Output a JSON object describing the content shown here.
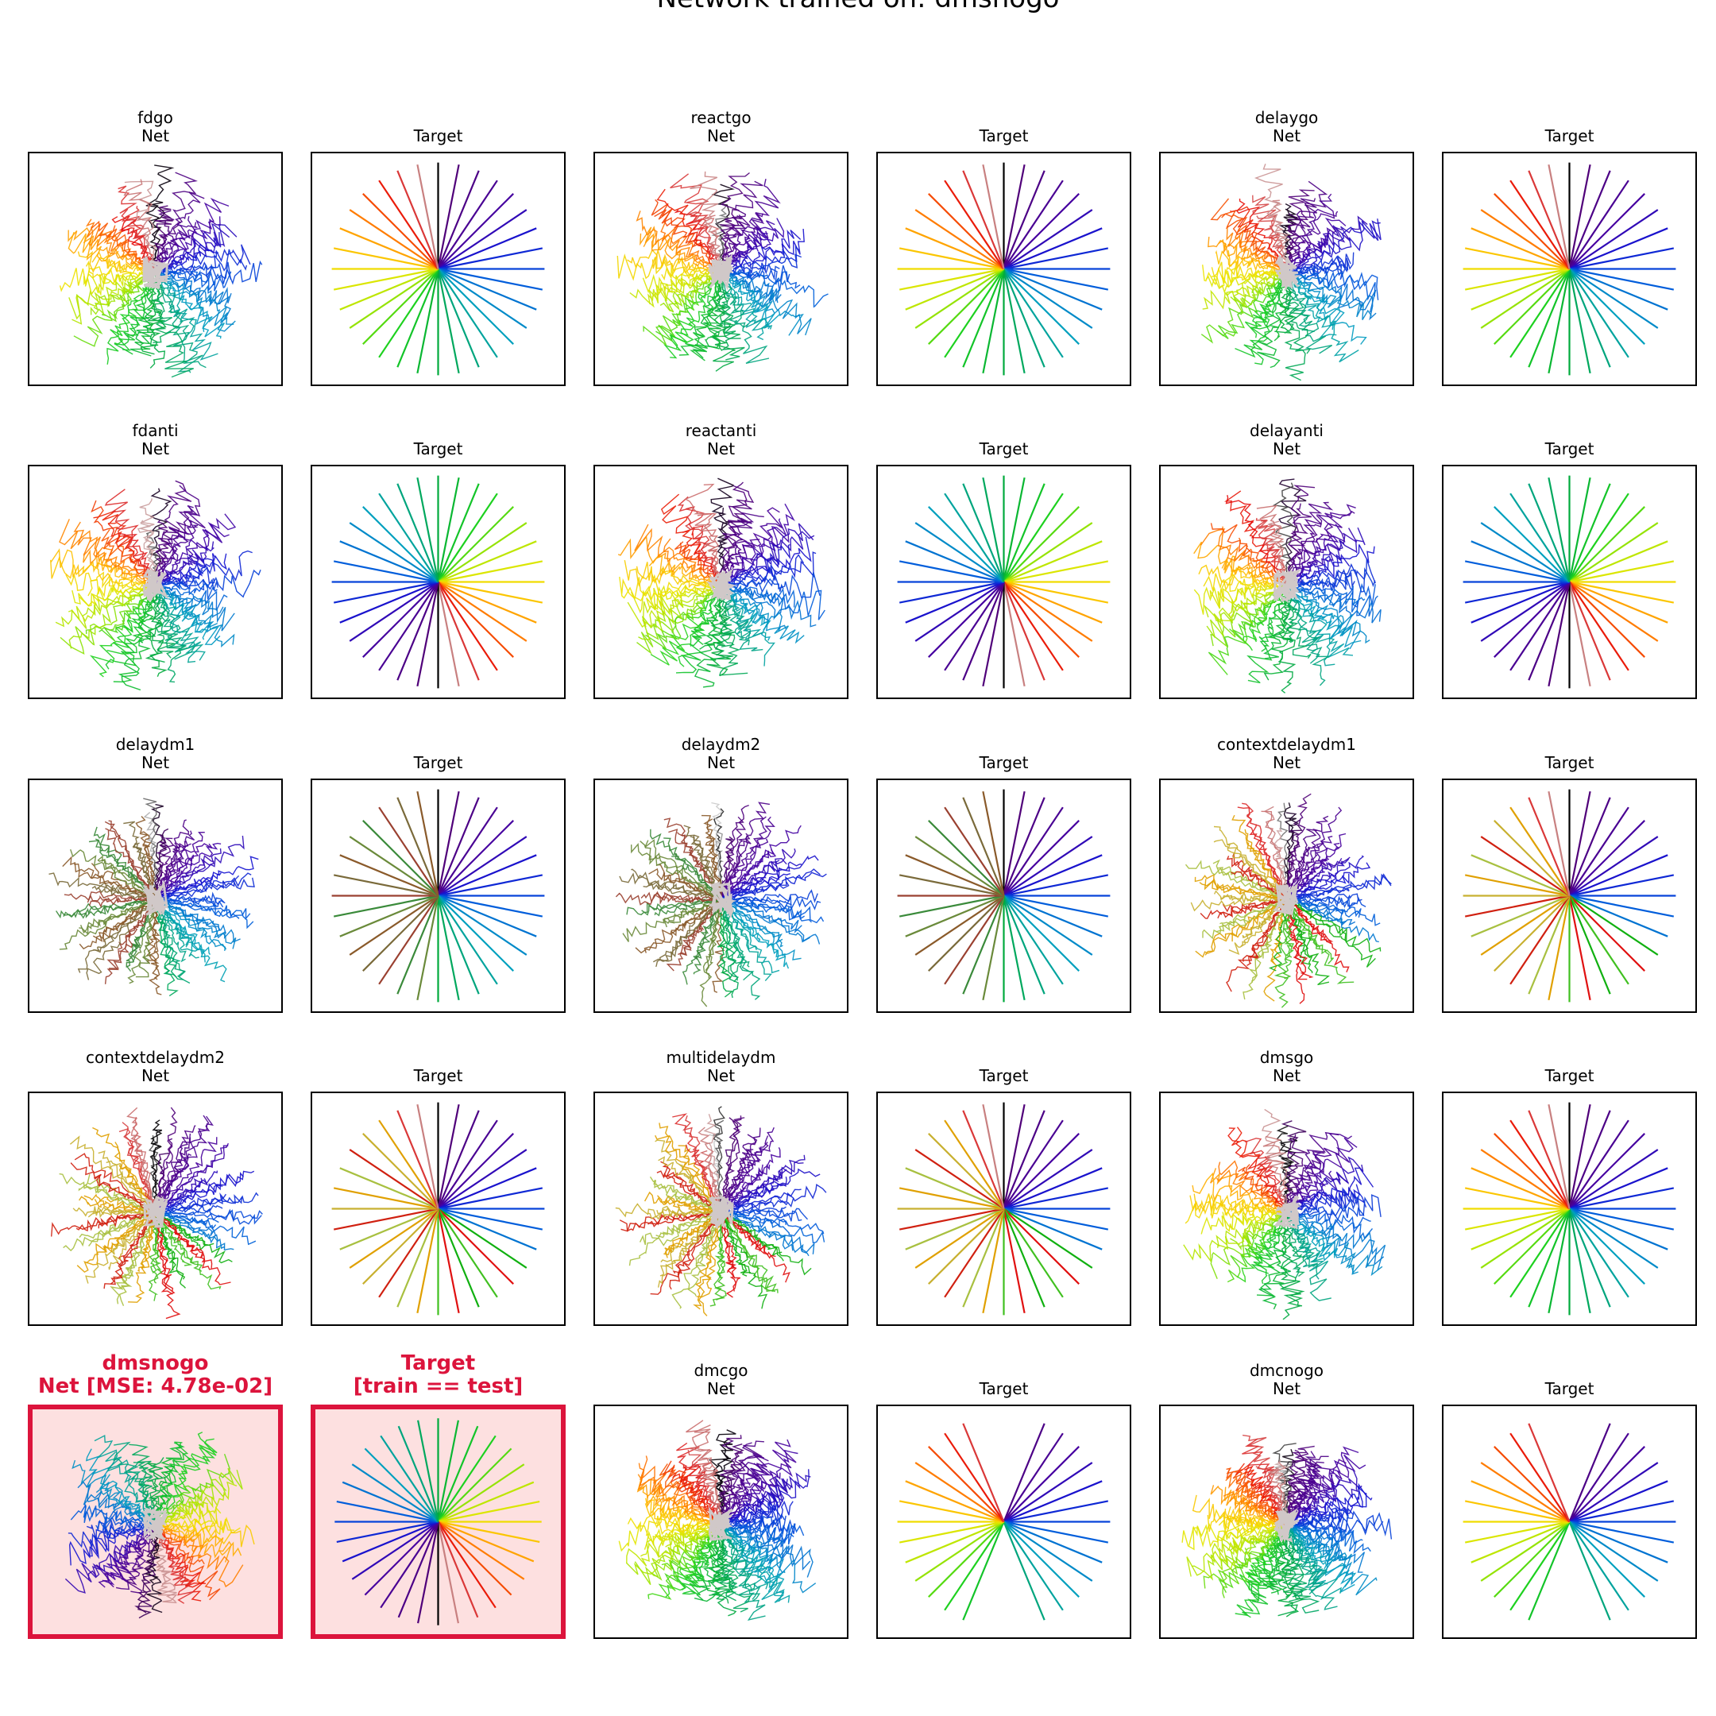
{
  "figure": {
    "title": "Network trained on: dmsnogo",
    "highlight_color": "#dc143c",
    "highlight_fill": "#fde0e0"
  },
  "chart_data": [
    {
      "type": "line",
      "task": "fdgo",
      "title": "fdgo\nNet",
      "kind": "net",
      "n_directions": 32,
      "mapping": "go",
      "rotation_deg": 0,
      "highlighted": false
    },
    {
      "type": "line",
      "task": "fdgo",
      "title": "Target",
      "kind": "target",
      "n_directions": 32,
      "mapping": "go",
      "rotation_deg": 0,
      "highlighted": false
    },
    {
      "type": "line",
      "task": "reactgo",
      "title": "reactgo\nNet",
      "kind": "net",
      "n_directions": 32,
      "mapping": "go",
      "rotation_deg": 0,
      "highlighted": false
    },
    {
      "type": "line",
      "task": "reactgo",
      "title": "Target",
      "kind": "target",
      "n_directions": 32,
      "mapping": "go",
      "rotation_deg": 0,
      "highlighted": false
    },
    {
      "type": "line",
      "task": "delaygo",
      "title": "delaygo\nNet",
      "kind": "net",
      "n_directions": 32,
      "mapping": "go",
      "rotation_deg": 0,
      "highlighted": false
    },
    {
      "type": "line",
      "task": "delaygo",
      "title": "Target",
      "kind": "target",
      "n_directions": 32,
      "mapping": "go",
      "rotation_deg": 0,
      "highlighted": false
    },
    {
      "type": "line",
      "task": "fdanti",
      "title": "fdanti\nNet",
      "kind": "net",
      "n_directions": 32,
      "mapping": "go",
      "rotation_deg": 0,
      "highlighted": false
    },
    {
      "type": "line",
      "task": "fdanti",
      "title": "Target",
      "kind": "target",
      "n_directions": 32,
      "mapping": "anti",
      "rotation_deg": 180,
      "highlighted": false
    },
    {
      "type": "line",
      "task": "reactanti",
      "title": "reactanti\nNet",
      "kind": "net",
      "n_directions": 32,
      "mapping": "go",
      "rotation_deg": 0,
      "highlighted": false
    },
    {
      "type": "line",
      "task": "reactanti",
      "title": "Target",
      "kind": "target",
      "n_directions": 32,
      "mapping": "anti",
      "rotation_deg": 180,
      "highlighted": false
    },
    {
      "type": "line",
      "task": "delayanti",
      "title": "delayanti\nNet",
      "kind": "net",
      "n_directions": 32,
      "mapping": "go",
      "rotation_deg": 0,
      "highlighted": false
    },
    {
      "type": "line",
      "task": "delayanti",
      "title": "Target",
      "kind": "target",
      "n_directions": 32,
      "mapping": "anti",
      "rotation_deg": 180,
      "highlighted": false
    },
    {
      "type": "line",
      "task": "delaydm1",
      "title": "delaydm1\nNet",
      "kind": "net",
      "n_directions": 32,
      "mapping": "dm",
      "rotation_deg": 0,
      "highlighted": false
    },
    {
      "type": "line",
      "task": "delaydm1",
      "title": "Target",
      "kind": "target",
      "n_directions": 32,
      "mapping": "dm",
      "rotation_deg": 0,
      "highlighted": false
    },
    {
      "type": "line",
      "task": "delaydm2",
      "title": "delaydm2\nNet",
      "kind": "net",
      "n_directions": 32,
      "mapping": "dm",
      "rotation_deg": 0,
      "highlighted": false
    },
    {
      "type": "line",
      "task": "delaydm2",
      "title": "Target",
      "kind": "target",
      "n_directions": 32,
      "mapping": "dm",
      "rotation_deg": 0,
      "highlighted": false
    },
    {
      "type": "line",
      "task": "contextdelaydm1",
      "title": "contextdelaydm1\nNet",
      "kind": "net",
      "n_directions": 32,
      "mapping": "ctx",
      "rotation_deg": 0,
      "highlighted": false
    },
    {
      "type": "line",
      "task": "contextdelaydm1",
      "title": "Target",
      "kind": "target",
      "n_directions": 32,
      "mapping": "ctx",
      "rotation_deg": 0,
      "highlighted": false
    },
    {
      "type": "line",
      "task": "contextdelaydm2",
      "title": "contextdelaydm2\nNet",
      "kind": "net",
      "n_directions": 32,
      "mapping": "ctx",
      "rotation_deg": 0,
      "highlighted": false
    },
    {
      "type": "line",
      "task": "contextdelaydm2",
      "title": "Target",
      "kind": "target",
      "n_directions": 32,
      "mapping": "ctx",
      "rotation_deg": 0,
      "highlighted": false
    },
    {
      "type": "line",
      "task": "multidelaydm",
      "title": "multidelaydm\nNet",
      "kind": "net",
      "n_directions": 32,
      "mapping": "ctx",
      "rotation_deg": 0,
      "highlighted": false
    },
    {
      "type": "line",
      "task": "multidelaydm",
      "title": "Target",
      "kind": "target",
      "n_directions": 32,
      "mapping": "ctx",
      "rotation_deg": 0,
      "highlighted": false
    },
    {
      "type": "line",
      "task": "dmsgo",
      "title": "dmsgo\nNet",
      "kind": "net",
      "n_directions": 32,
      "mapping": "go",
      "rotation_deg": 0,
      "highlighted": false
    },
    {
      "type": "line",
      "task": "dmsgo",
      "title": "Target",
      "kind": "target",
      "n_directions": 32,
      "mapping": "go",
      "rotation_deg": 0,
      "highlighted": false
    },
    {
      "type": "line",
      "task": "dmsnogo",
      "title": "dmsnogo\nNet [MSE: 4.78e-02]",
      "kind": "net",
      "n_directions": 32,
      "mapping": "anti",
      "rotation_deg": 180,
      "highlighted": true
    },
    {
      "type": "line",
      "task": "dmsnogo",
      "title": "Target\n[train == test]",
      "kind": "target",
      "n_directions": 32,
      "mapping": "anti",
      "rotation_deg": 180,
      "highlighted": true
    },
    {
      "type": "line",
      "task": "dmcgo",
      "title": "dmcgo\nNet",
      "kind": "net",
      "n_directions": 32,
      "mapping": "dmc",
      "rotation_deg": 0,
      "highlighted": false
    },
    {
      "type": "line",
      "task": "dmcgo",
      "title": "Target",
      "kind": "target",
      "n_directions": 32,
      "mapping": "dmc",
      "rotation_deg": 0,
      "highlighted": false
    },
    {
      "type": "line",
      "task": "dmcnogo",
      "title": "dmcnogo\nNet",
      "kind": "net",
      "n_directions": 32,
      "mapping": "dmcno",
      "rotation_deg": 0,
      "highlighted": false
    },
    {
      "type": "line",
      "task": "dmcnogo",
      "title": "Target",
      "kind": "target",
      "n_directions": 32,
      "mapping": "dmcno",
      "rotation_deg": 0,
      "highlighted": false
    }
  ]
}
